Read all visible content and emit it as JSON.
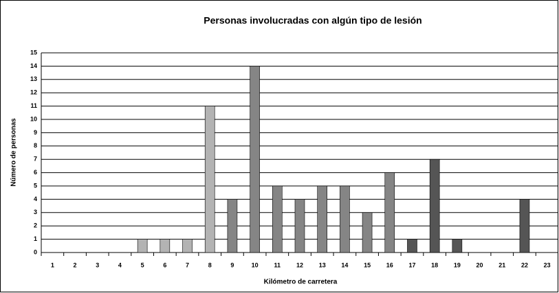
{
  "chart_data": {
    "type": "bar",
    "title": "Personas involucradas con algún tipo de lesión",
    "x_label": "Kilómetro de carretera",
    "y_label": "Número de personas",
    "categories": [
      "1",
      "2",
      "3",
      "4",
      "5",
      "6",
      "7",
      "8",
      "9",
      "10",
      "11",
      "12",
      "13",
      "14",
      "15",
      "16",
      "17",
      "18",
      "19",
      "20",
      "21",
      "22",
      "23"
    ],
    "values": [
      0,
      0,
      0,
      0,
      1,
      1,
      1,
      11,
      4,
      14,
      5,
      4,
      5,
      5,
      3,
      6,
      1,
      7,
      1,
      0,
      0,
      4,
      0
    ],
    "colors": [
      "#b3b3b3",
      "#b3b3b3",
      "#b3b3b3",
      "#b3b3b3",
      "#b3b3b3",
      "#b3b3b3",
      "#b3b3b3",
      "#b3b3b3",
      "#858585",
      "#858585",
      "#858585",
      "#858585",
      "#858585",
      "#858585",
      "#858585",
      "#858585",
      "#555555",
      "#555555",
      "#555555",
      "#555555",
      "#555555",
      "#555555",
      "#555555"
    ],
    "ylim": [
      0,
      15
    ],
    "yticks": [
      0,
      1,
      2,
      3,
      4,
      5,
      6,
      7,
      8,
      9,
      10,
      11,
      12,
      13,
      14,
      15
    ],
    "grid": true
  }
}
